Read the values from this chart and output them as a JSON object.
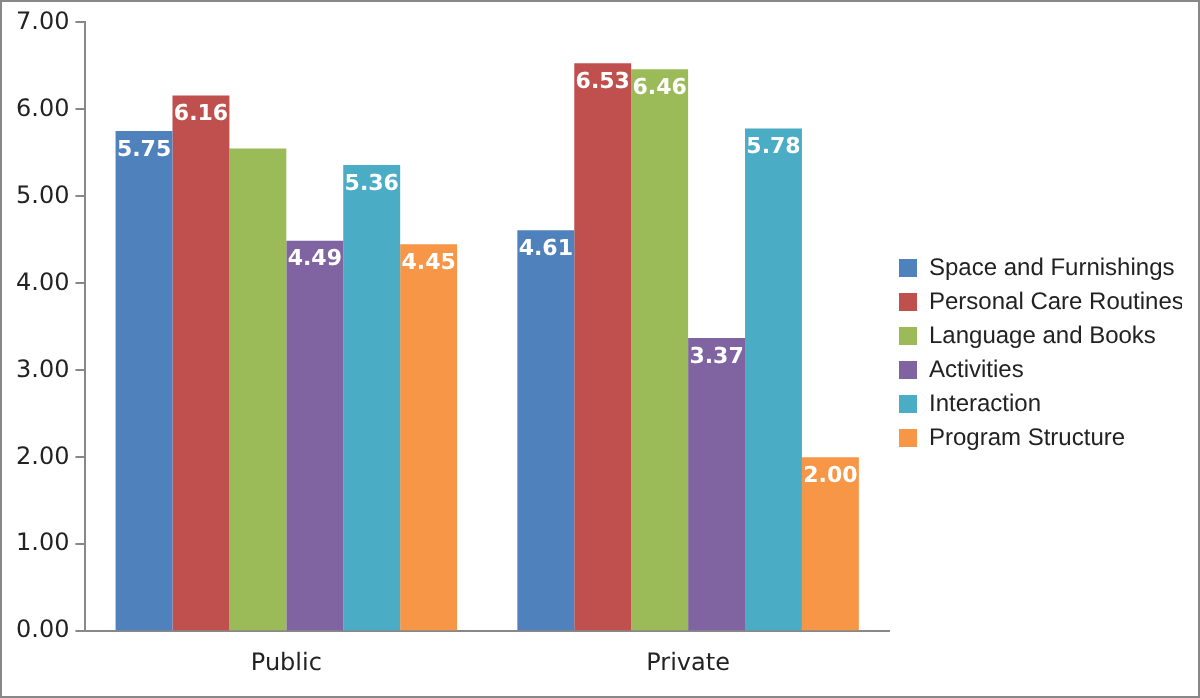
{
  "chart_data": {
    "type": "bar",
    "categories": [
      "Public",
      "Private"
    ],
    "series": [
      {
        "name": "Space and Furnishings",
        "color": "#4f81bd",
        "values": [
          5.75,
          4.61
        ],
        "value_labels": [
          "5.75",
          "4.61"
        ]
      },
      {
        "name": "Personal Care Routines",
        "color": "#c0504d",
        "values": [
          6.16,
          6.53
        ],
        "value_labels": [
          "6.16",
          "6.53"
        ]
      },
      {
        "name": "Language and Books",
        "color": "#9bbb59",
        "values": [
          5.55,
          6.46
        ],
        "value_labels": [
          null,
          "6.46"
        ]
      },
      {
        "name": "Activities",
        "color": "#8064a2",
        "values": [
          4.49,
          3.37
        ],
        "value_labels": [
          "4.49",
          "3.37"
        ]
      },
      {
        "name": "Interaction",
        "color": "#4bacc6",
        "values": [
          5.36,
          5.78
        ],
        "value_labels": [
          "5.36",
          "5.78"
        ]
      },
      {
        "name": "Program Structure",
        "color": "#f79646",
        "values": [
          4.45,
          2.0
        ],
        "value_labels": [
          "4.45",
          "2.00"
        ]
      }
    ],
    "ylim": [
      0,
      7
    ],
    "yticks": [
      {
        "value": 0,
        "label": "0.00"
      },
      {
        "value": 1,
        "label": "1.00"
      },
      {
        "value": 2,
        "label": "2.00"
      },
      {
        "value": 3,
        "label": "3.00"
      },
      {
        "value": 4,
        "label": "4.00"
      },
      {
        "value": 5,
        "label": "5.00"
      },
      {
        "value": 6,
        "label": "6.00"
      },
      {
        "value": 7,
        "label": "7.00"
      }
    ],
    "grid": false,
    "legend": "right"
  }
}
